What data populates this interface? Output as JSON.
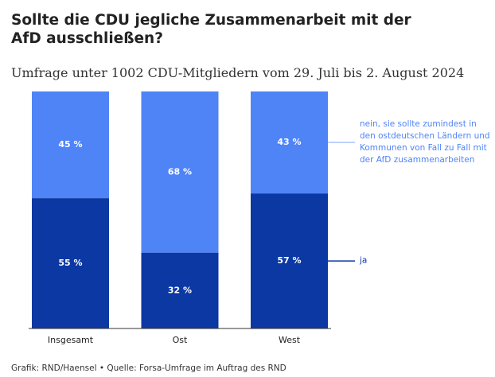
{
  "chart_data": {
    "type": "stacked-bar",
    "title": "Sollte die CDU jegliche Zusammenarbeit mit der AfD ausschließen?",
    "subtitle": "Umfrage unter 1002 CDU-Mitgliedern vom 29. Juli bis 2. August 2024",
    "categories": [
      "Insgesamt",
      "Ost",
      "West"
    ],
    "series": [
      {
        "name": "ja",
        "color": "#0b38a3",
        "values": [
          55,
          32,
          57
        ],
        "value_labels": [
          "55 %",
          "32 %",
          "57 %"
        ]
      },
      {
        "name": "nein, sie sollte zumindest in den ostdeutschen Ländern und Kommunen von Fall zu Fall mit der AfD zusammenarbeiten",
        "color": "#4f84f7",
        "values": [
          45,
          68,
          43
        ],
        "value_labels": [
          "45 %",
          "68 %",
          "43 %"
        ]
      }
    ],
    "ylim": [
      0,
      100
    ],
    "source": "Grafik: RND/Haensel • Quelle: Forsa-Umfrage im Auftrag des RND"
  }
}
